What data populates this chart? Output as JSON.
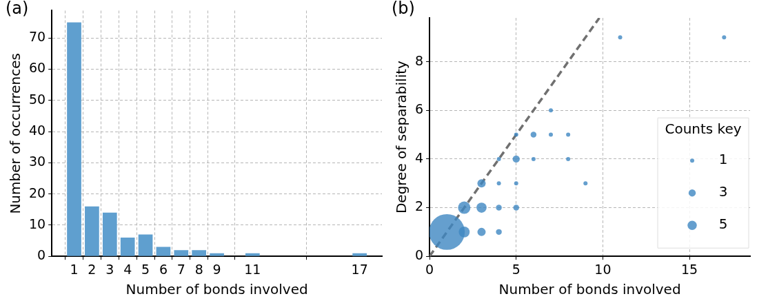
{
  "chart_data": [
    {
      "type": "bar",
      "title": "(a)",
      "xlabel": "Number of bonds involved",
      "ylabel": "Number of occurrences",
      "x": [
        1,
        2,
        3,
        4,
        5,
        6,
        7,
        8,
        9,
        11,
        17
      ],
      "values": [
        75,
        16,
        14,
        6,
        7,
        3,
        2,
        2,
        1,
        1,
        1
      ],
      "color": "#5f9fcf",
      "xlim": [
        -0.25,
        18.25
      ],
      "xticks": [
        1,
        2,
        3,
        4,
        5,
        6,
        7,
        8,
        9,
        11,
        17
      ],
      "ylim": [
        0,
        78.8
      ],
      "yticks": [
        0,
        10,
        20,
        30,
        40,
        50,
        60,
        70
      ],
      "grid": true
    },
    {
      "type": "bubble",
      "title": "(b)",
      "xlabel": "Number of bonds involved",
      "ylabel": "Degree of separability",
      "legend_title": "Counts key",
      "marker": "circle",
      "xlim": [
        0,
        18.5
      ],
      "xticks": [
        0,
        5,
        10,
        15
      ],
      "ylim": [
        0,
        9.8
      ],
      "yticks": [
        0,
        2,
        4,
        6,
        8
      ],
      "grid": true,
      "size_legend": [
        1,
        3,
        5
      ],
      "series": [
        {
          "color": "#3f87c2",
          "x": [
            1,
            2,
            2,
            3,
            3,
            3,
            4,
            4,
            4,
            4,
            5,
            5,
            5,
            5,
            6,
            6,
            7,
            7,
            8,
            8,
            9,
            11,
            17
          ],
          "values": [
            1,
            1,
            2,
            1,
            2,
            3,
            1,
            2,
            3,
            4,
            2,
            3,
            4,
            5,
            4,
            5,
            5,
            6,
            4,
            5,
            3,
            9,
            9
          ],
          "sizes": [
            75,
            7,
            9,
            4,
            6,
            4,
            2,
            2,
            1,
            1,
            2,
            1,
            3,
            1,
            1,
            2,
            1,
            1,
            1,
            1,
            1,
            1,
            1
          ]
        },
        {
          "type": "line",
          "color": "#707070",
          "line_style": "dashed",
          "marker": "none",
          "x": [
            0,
            9.8
          ],
          "values": [
            0,
            9.8
          ]
        }
      ]
    }
  ]
}
